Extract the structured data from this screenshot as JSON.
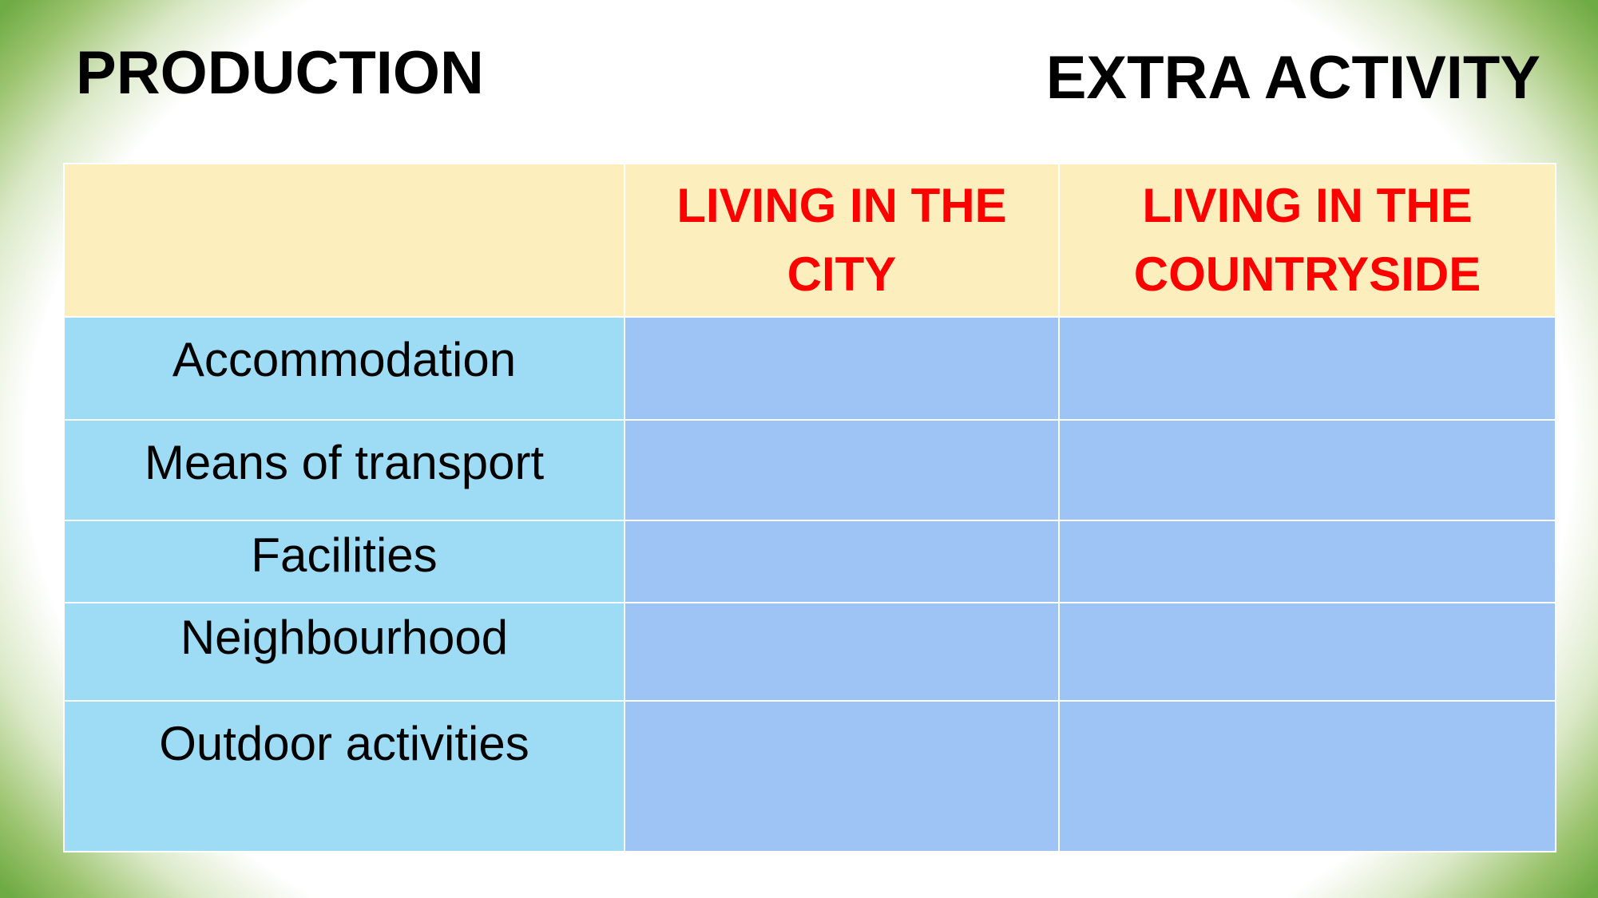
{
  "header": {
    "left": "PRODUCTION",
    "right": "EXTRA ACTIVITY"
  },
  "table": {
    "columns": [
      "LIVING IN THE CITY",
      "LIVING IN THE COUNTRYSIDE"
    ],
    "rows": [
      "Accommodation",
      "Means of transport",
      "Facilities",
      "Neighbourhood",
      "Outdoor activities"
    ]
  }
}
